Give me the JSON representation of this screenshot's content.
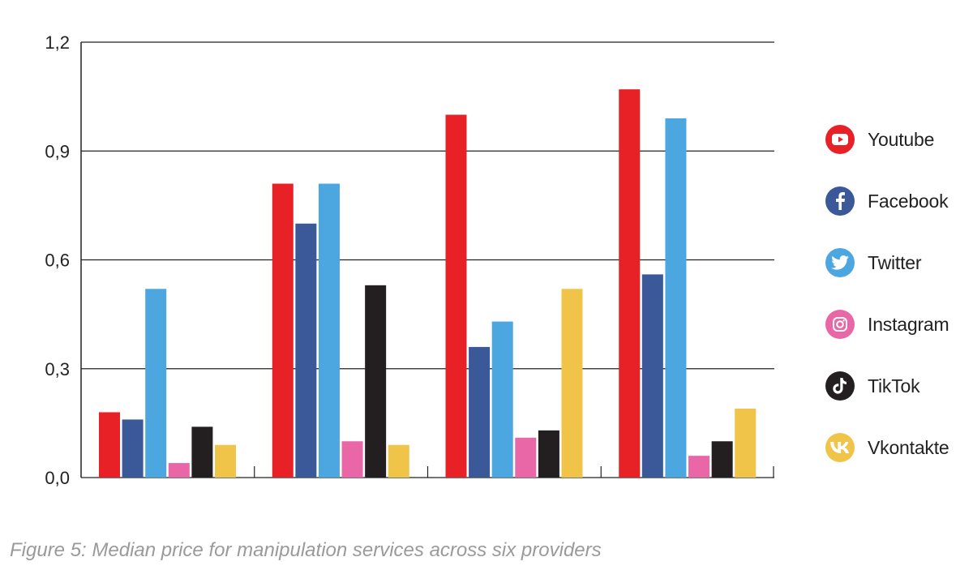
{
  "chart_data": {
    "type": "bar",
    "categories": [
      "",
      "",
      "",
      ""
    ],
    "series": [
      {
        "name": "Youtube",
        "color": "#e82127",
        "values": [
          0.18,
          0.81,
          1.0,
          1.07
        ]
      },
      {
        "name": "Facebook",
        "color": "#3b5998",
        "values": [
          0.16,
          0.7,
          0.36,
          0.56
        ]
      },
      {
        "name": "Twitter",
        "color": "#4ca6df",
        "values": [
          0.52,
          0.81,
          0.43,
          0.99
        ]
      },
      {
        "name": "Instagram",
        "color": "#e966a7",
        "values": [
          0.04,
          0.1,
          0.11,
          0.06
        ]
      },
      {
        "name": "TikTok",
        "color": "#231f20",
        "values": [
          0.14,
          0.53,
          0.13,
          0.1
        ]
      },
      {
        "name": "Vkontakte",
        "color": "#f0c449",
        "values": [
          0.09,
          0.09,
          0.52,
          0.19
        ]
      }
    ],
    "yticks": [
      "0,0",
      "0,3",
      "0,6",
      "0,9",
      "1,2"
    ],
    "ytick_values": [
      0,
      0.3,
      0.6,
      0.9,
      1.2
    ],
    "ylim": [
      0,
      1.2
    ],
    "grid": true,
    "legend": "right"
  },
  "legend_items": [
    {
      "label": "Youtube",
      "icon": "youtube-icon",
      "color": "#e82127"
    },
    {
      "label": "Facebook",
      "icon": "facebook-icon",
      "color": "#3b5998"
    },
    {
      "label": "Twitter",
      "icon": "twitter-icon",
      "color": "#4ca6df"
    },
    {
      "label": "Instagram",
      "icon": "instagram-icon",
      "color": "#e966a7"
    },
    {
      "label": "TikTok",
      "icon": "tiktok-icon",
      "color": "#231f20"
    },
    {
      "label": "Vkontakte",
      "icon": "vkontakte-icon",
      "color": "#f0c449"
    }
  ],
  "caption": "Figure 5: Median price for manipulation services across six providers"
}
